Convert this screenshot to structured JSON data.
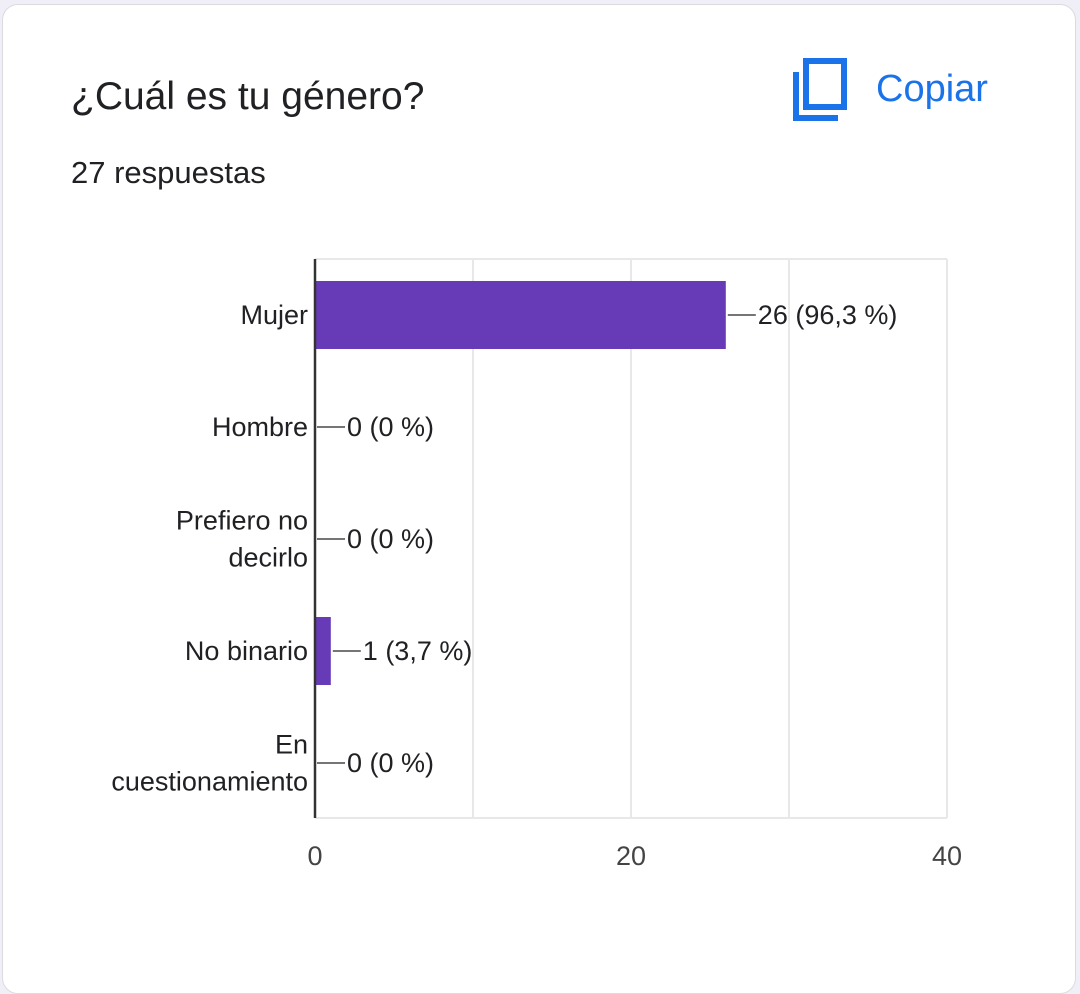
{
  "question": {
    "title": "¿Cuál es tu género?",
    "responses": "27 respuestas"
  },
  "copy": {
    "label": "Copiar",
    "icon": "copy-icon"
  },
  "colors": {
    "bar": "#673ab7",
    "link": "#1a73e8",
    "text": "#202124",
    "grid": "#e8e8e8",
    "axis": "#333333"
  },
  "chart_data": {
    "type": "bar",
    "orientation": "horizontal",
    "title": "",
    "xlabel": "",
    "ylabel": "",
    "xlim": [
      0,
      40
    ],
    "x_ticks": [
      0,
      20,
      40
    ],
    "grid": true,
    "categories": [
      [
        "Mujer"
      ],
      [
        "Hombre"
      ],
      [
        "Prefiero no",
        "decirlo"
      ],
      [
        "No binario"
      ],
      [
        "En",
        "cuestionamiento"
      ]
    ],
    "values": [
      26,
      0,
      0,
      1,
      0
    ],
    "data_labels": [
      "26 (96,3 %)",
      "0 (0 %)",
      "0 (0 %)",
      "1 (3,7 %)",
      "0 (0 %)"
    ]
  }
}
